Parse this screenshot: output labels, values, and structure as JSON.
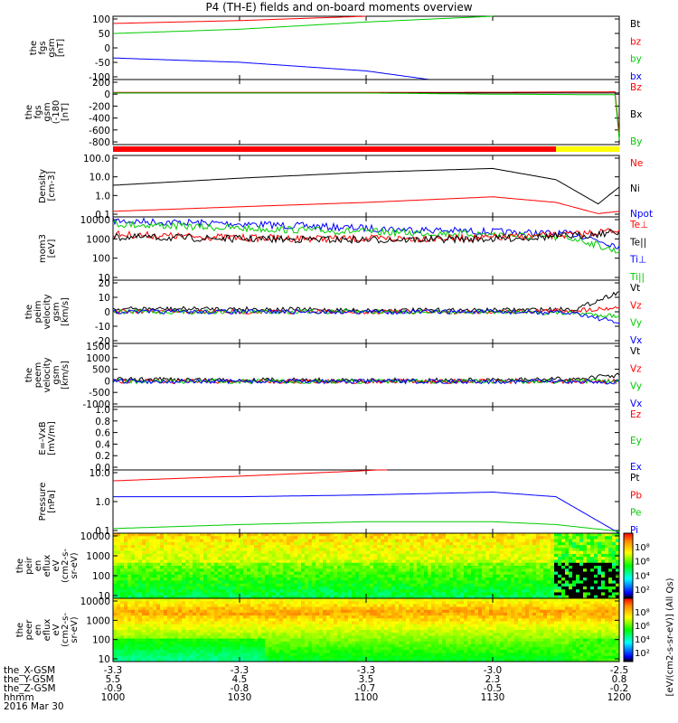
{
  "title": "P4 (TH-E) fields and on-board moments overview",
  "chart_data": [
    {
      "type": "line",
      "ylabel": [
        "the",
        "fgs",
        "gsm",
        "[nT]"
      ],
      "yticks": [
        "100",
        "50",
        "0",
        "-50",
        "-100"
      ],
      "ylim": [
        -105,
        115
      ],
      "legend": [
        {
          "name": "Bt",
          "color": "#000000"
        },
        {
          "name": "bz",
          "color": "#ff0000"
        },
        {
          "name": "by",
          "color": "#00cc00"
        },
        {
          "name": "bx",
          "color": "#0000ff"
        }
      ],
      "series": [
        {
          "name": "bz",
          "color": "#ff0000",
          "x": [
            1000,
            1030,
            1100
          ],
          "y": [
            90,
            100,
            115
          ]
        },
        {
          "name": "by",
          "color": "#00cc00",
          "x": [
            1000,
            1030,
            1100,
            1130
          ],
          "y": [
            55,
            70,
            95,
            115
          ]
        },
        {
          "name": "bx",
          "color": "#0000ff",
          "x": [
            1000,
            1030,
            1100,
            1115,
            1130
          ],
          "y": [
            -30,
            -45,
            -75,
            -105,
            -105
          ]
        }
      ]
    },
    {
      "type": "line",
      "ylabel": [
        "the",
        "fgs",
        "gsm",
        "(-180",
        "[nT]"
      ],
      "yticks": [
        "200",
        "0",
        "-200",
        "-400",
        "-600",
        "-800"
      ],
      "ylim": [
        -880,
        230
      ],
      "legend": [
        {
          "name": "Bz",
          "color": "#ff0000"
        },
        {
          "name": "Bx",
          "color": "#000000"
        },
        {
          "name": "By",
          "color": "#00cc00"
        }
      ],
      "series": [
        {
          "name": "Bz",
          "color": "#ff0000",
          "x": [
            1000,
            1130,
            1159,
            1200
          ],
          "y": [
            10,
            12,
            20,
            -700
          ]
        },
        {
          "name": "Bx",
          "color": "#000000",
          "x": [
            1000,
            1130,
            1159,
            1200
          ],
          "y": [
            0,
            0,
            0,
            0
          ]
        },
        {
          "name": "By",
          "color": "#00cc00",
          "x": [
            1000,
            1100,
            1130,
            1159,
            1200
          ],
          "y": [
            0,
            0,
            -20,
            -30,
            -800
          ]
        }
      ]
    },
    {
      "type": "line",
      "log": true,
      "ylabel": [
        "Density",
        "[cm-3]"
      ],
      "yticks": [
        "100.0",
        "10.0",
        "1.0",
        "0.1"
      ],
      "ylim": [
        0.1,
        200
      ],
      "legend": [
        {
          "name": "Ne",
          "color": "#ff0000"
        },
        {
          "name": "Ni",
          "color": "#000000"
        },
        {
          "name": "Npot",
          "color": "#0000ff"
        }
      ],
      "series": [
        {
          "name": "Ni",
          "color": "#000000",
          "x": [
            1000,
            1030,
            1100,
            1130,
            1145,
            1155,
            1200
          ],
          "y": [
            5,
            12,
            25,
            40,
            10,
            0.5,
            4
          ]
        },
        {
          "name": "Ne",
          "color": "#ff0000",
          "x": [
            1000,
            1030,
            1100,
            1130,
            1145,
            1155,
            1200
          ],
          "y": [
            0.2,
            0.35,
            0.6,
            1.2,
            0.6,
            0.15,
            0.2
          ]
        }
      ]
    },
    {
      "type": "line",
      "log": true,
      "ylabel": [
        "mom3",
        "[eV]"
      ],
      "yticks": [
        "10000",
        "1000",
        "100",
        "10"
      ],
      "ylim": [
        8,
        11000
      ],
      "legend": [
        {
          "name": "Te⊥",
          "color": "#ff0000"
        },
        {
          "name": "Te||",
          "color": "#000000"
        },
        {
          "name": "Ti⊥",
          "color": "#0000ff"
        },
        {
          "name": "Ti||",
          "color": "#00cc00"
        }
      ],
      "series": [
        {
          "name": "Ti⊥",
          "color": "#0000ff",
          "x": [
            1000,
            1030,
            1100,
            1130,
            1150,
            1200
          ],
          "y": [
            7000,
            5000,
            3000,
            2000,
            1500,
            400
          ]
        },
        {
          "name": "Ti||",
          "color": "#00cc00",
          "x": [
            1000,
            1030,
            1100,
            1130,
            1150,
            1200
          ],
          "y": [
            5000,
            3000,
            2000,
            1500,
            900,
            200
          ]
        },
        {
          "name": "Te⊥",
          "color": "#ff0000",
          "x": [
            1000,
            1030,
            1100,
            1130,
            1150,
            1200
          ],
          "y": [
            1500,
            1000,
            900,
            1000,
            1500,
            2500
          ]
        },
        {
          "name": "Te||",
          "color": "#000000",
          "x": [
            1000,
            1030,
            1100,
            1130,
            1150,
            1200
          ],
          "y": [
            1100,
            900,
            800,
            900,
            1300,
            2000
          ]
        }
      ]
    },
    {
      "type": "line",
      "ylabel": [
        "the",
        "peim",
        "velocity",
        "gsm",
        "[km/s]"
      ],
      "yticks": [
        "20",
        "10",
        "0",
        "-10",
        "-20"
      ],
      "ylim": [
        -22,
        22
      ],
      "legend": [
        {
          "name": "Vt",
          "color": "#000000"
        },
        {
          "name": "Vz",
          "color": "#ff0000"
        },
        {
          "name": "Vy",
          "color": "#00cc00"
        },
        {
          "name": "Vx",
          "color": "#0000ff"
        }
      ],
      "series": [
        {
          "name": "Vt",
          "color": "#000000",
          "x": [
            1000,
            1030,
            1100,
            1130,
            1150,
            1200
          ],
          "y": [
            2,
            2,
            1,
            1,
            2,
            14
          ]
        },
        {
          "name": "Vz",
          "color": "#ff0000",
          "x": [
            1000,
            1030,
            1100,
            1130,
            1150,
            1200
          ],
          "y": [
            0,
            0,
            0,
            0,
            1,
            3
          ]
        },
        {
          "name": "Vy",
          "color": "#00cc00",
          "x": [
            1000,
            1030,
            1100,
            1130,
            1150,
            1200
          ],
          "y": [
            0,
            0,
            0,
            0,
            -1,
            -3
          ]
        },
        {
          "name": "Vx",
          "color": "#0000ff",
          "x": [
            1000,
            1030,
            1100,
            1130,
            1150,
            1200
          ],
          "y": [
            0,
            0,
            0,
            0,
            -1,
            -8
          ]
        }
      ]
    },
    {
      "type": "line",
      "ylabel": [
        "the",
        "peem",
        "velocity",
        "gsm",
        "[km/s]"
      ],
      "yticks": [
        "1500",
        "1000",
        "500",
        "0",
        "-500",
        "-1000"
      ],
      "ylim": [
        -1000,
        1500
      ],
      "legend": [
        {
          "name": "Vt",
          "color": "#000000"
        },
        {
          "name": "Vz",
          "color": "#ff0000"
        },
        {
          "name": "Vy",
          "color": "#00cc00"
        },
        {
          "name": "Vx",
          "color": "#0000ff"
        }
      ],
      "series": [
        {
          "name": "Vt",
          "color": "#000000",
          "x": [
            1000,
            1030,
            1100,
            1130,
            1150,
            1200
          ],
          "y": [
            80,
            60,
            40,
            40,
            100,
            250
          ]
        },
        {
          "name": "Vz",
          "color": "#ff0000",
          "x": [
            1000,
            1200
          ],
          "y": [
            0,
            0
          ]
        },
        {
          "name": "Vy",
          "color": "#00cc00",
          "x": [
            1000,
            1200
          ],
          "y": [
            0,
            0
          ]
        },
        {
          "name": "Vx",
          "color": "#0000ff",
          "x": [
            1000,
            1150,
            1200
          ],
          "y": [
            0,
            0,
            -40
          ]
        }
      ]
    },
    {
      "type": "line",
      "ylabel": [
        "E=-VxB",
        "[mV/m]"
      ],
      "yticks": [
        "1.0",
        "0.8",
        "0.6",
        "0.4",
        "0.2",
        "0.0"
      ],
      "ylim": [
        0,
        1
      ],
      "legend": [
        {
          "name": "Ez",
          "color": "#ff0000"
        },
        {
          "name": "Ey",
          "color": "#00cc00"
        },
        {
          "name": "Ex",
          "color": "#0000ff"
        }
      ],
      "series": []
    },
    {
      "type": "line",
      "log": true,
      "ylabel": [
        "Pressure",
        "[nPa]"
      ],
      "yticks": [
        "10.0",
        "1.0",
        "0.1"
      ],
      "ylim": [
        0.025,
        15
      ],
      "legend": [
        {
          "name": "Pt",
          "color": "#000000"
        },
        {
          "name": "Pb",
          "color": "#ff0000"
        },
        {
          "name": "Pe",
          "color": "#00cc00"
        },
        {
          "name": "Pi",
          "color": "#0000ff"
        }
      ],
      "series": [
        {
          "name": "Pb",
          "color": "#ff0000",
          "x": [
            1000,
            1030,
            1100,
            1105
          ],
          "y": [
            5,
            8,
            14,
            16
          ]
        },
        {
          "name": "Pi",
          "color": "#0000ff",
          "x": [
            1000,
            1030,
            1100,
            1130,
            1145,
            1200
          ],
          "y": [
            1.0,
            1.0,
            1.2,
            1.6,
            1.0,
            0.025
          ]
        },
        {
          "name": "Pe",
          "color": "#00cc00",
          "x": [
            1000,
            1030,
            1100,
            1130,
            1145,
            1200
          ],
          "y": [
            0.04,
            0.06,
            0.08,
            0.08,
            0.06,
            0.03
          ]
        }
      ]
    },
    {
      "type": "heatmap",
      "ylabel": [
        "the",
        "peir",
        "en",
        "eflux",
        "eV",
        "(cm2-s-",
        "sr-eV)"
      ],
      "yticks": [
        "10000",
        "1000",
        "100",
        "10"
      ],
      "ylim": [
        8,
        20000
      ]
    },
    {
      "type": "heatmap",
      "ylabel": [
        "the",
        "peer",
        "en",
        "eflux",
        "eV",
        "(cm2-s-",
        "sr-eV)"
      ],
      "yticks": [
        "10000",
        "1000",
        "100",
        "10"
      ],
      "ylim": [
        8,
        20000
      ]
    }
  ],
  "colorbar": {
    "ticks": [
      "10⁸",
      "10⁶",
      "10⁴",
      "10²"
    ],
    "label": "[eV/(cm2-s-sr-eV)] (All Qs)"
  },
  "x_axis": {
    "tick_times": [
      1000,
      1030,
      1100,
      1130,
      1200
    ],
    "rows": [
      {
        "label": "the_X-GSM",
        "values": [
          "-3.3",
          "-3.3",
          "-3.3",
          "-3.0",
          "-2.5"
        ]
      },
      {
        "label": "the_Y-GSM",
        "values": [
          "5.5",
          "4.5",
          "3.5",
          "2.3",
          "0.8"
        ]
      },
      {
        "label": "the_Z-GSM",
        "values": [
          "-0.9",
          "-0.8",
          "-0.7",
          "-0.5",
          "-0.2"
        ]
      },
      {
        "label": "hhmm",
        "values": [
          "1000",
          "1030",
          "1100",
          "1130",
          "1200"
        ]
      }
    ],
    "date": "2016 Mar 30"
  }
}
